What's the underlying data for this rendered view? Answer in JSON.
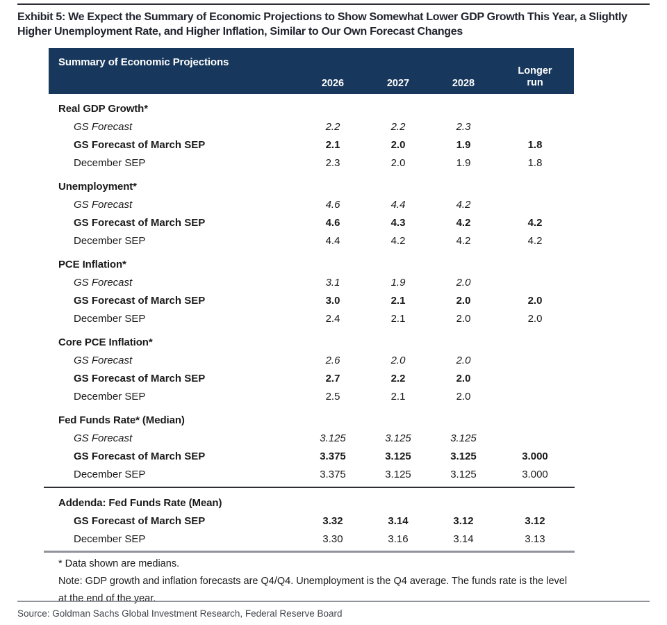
{
  "exhibit": {
    "title": "Exhibit 5: We Expect the Summary of Economic Projections to Show Somewhat Lower GDP Growth This Year, a Slightly Higher Unemployment Rate, and Higher Inflation, Similar to Our Own Forecast Changes",
    "source": "Source: Goldman Sachs Global Investment Research, Federal Reserve Board"
  },
  "table": {
    "title": "Summary of Economic Projections",
    "columns": [
      "2026",
      "2027",
      "2028",
      "Longer run"
    ],
    "sections": [
      {
        "label": "Real GDP Growth*",
        "rows": [
          {
            "label": "GS Forecast",
            "style": "italic",
            "values": [
              "2.2",
              "2.2",
              "2.3",
              ""
            ]
          },
          {
            "label": "GS Forecast of March SEP",
            "style": "bold",
            "values": [
              "2.1",
              "2.0",
              "1.9",
              "1.8"
            ]
          },
          {
            "label": "December SEP",
            "style": "regular",
            "values": [
              "2.3",
              "2.0",
              "1.9",
              "1.8"
            ]
          }
        ]
      },
      {
        "label": "Unemployment*",
        "rows": [
          {
            "label": "GS Forecast",
            "style": "italic",
            "values": [
              "4.6",
              "4.4",
              "4.2",
              ""
            ]
          },
          {
            "label": "GS Forecast of March SEP",
            "style": "bold",
            "values": [
              "4.6",
              "4.3",
              "4.2",
              "4.2"
            ]
          },
          {
            "label": "December SEP",
            "style": "regular",
            "values": [
              "4.4",
              "4.2",
              "4.2",
              "4.2"
            ]
          }
        ]
      },
      {
        "label": "PCE Inflation*",
        "rows": [
          {
            "label": "GS Forecast",
            "style": "italic",
            "values": [
              "3.1",
              "1.9",
              "2.0",
              ""
            ]
          },
          {
            "label": "GS Forecast of March SEP",
            "style": "bold",
            "values": [
              "3.0",
              "2.1",
              "2.0",
              "2.0"
            ]
          },
          {
            "label": "December SEP",
            "style": "regular",
            "values": [
              "2.4",
              "2.1",
              "2.0",
              "2.0"
            ]
          }
        ]
      },
      {
        "label": "Core PCE Inflation*",
        "rows": [
          {
            "label": "GS Forecast",
            "style": "italic",
            "values": [
              "2.6",
              "2.0",
              "2.0",
              ""
            ]
          },
          {
            "label": "GS Forecast of March SEP",
            "style": "bold",
            "values": [
              "2.7",
              "2.2",
              "2.0",
              ""
            ]
          },
          {
            "label": "December SEP",
            "style": "regular",
            "values": [
              "2.5",
              "2.1",
              "2.0",
              ""
            ]
          }
        ]
      },
      {
        "label": "Fed Funds Rate* (Median)",
        "rows": [
          {
            "label": "GS Forecast",
            "style": "italic",
            "values": [
              "3.125",
              "3.125",
              "3.125",
              ""
            ]
          },
          {
            "label": "GS Forecast of March SEP",
            "style": "bold",
            "values": [
              "3.375",
              "3.125",
              "3.125",
              "3.000"
            ]
          },
          {
            "label": "December SEP",
            "style": "regular",
            "values": [
              "3.375",
              "3.125",
              "3.125",
              "3.000"
            ]
          }
        ]
      },
      {
        "label": "Addenda: Fed Funds Rate (Mean)",
        "divider_above": true,
        "rows": [
          {
            "label": "GS Forecast of March SEP",
            "style": "bold",
            "values": [
              "3.32",
              "3.14",
              "3.12",
              "3.12"
            ]
          },
          {
            "label": "December SEP",
            "style": "regular",
            "values": [
              "3.30",
              "3.16",
              "3.14",
              "3.13"
            ]
          }
        ]
      }
    ],
    "footnotes": [
      "* Data shown are medians.",
      "Note: GDP growth and inflation forecasts are Q4/Q4.  Unemployment is the Q4 average.  The funds rate is the level at the end of the year."
    ]
  },
  "colors": {
    "header_bg": "#17375c",
    "header_text": "#ffffff",
    "title_text": "#20242e",
    "body_text": "#1a1a1a",
    "divider_dark": "#2e2f33",
    "divider_gray": "#90939a",
    "source_text": "#42464e"
  }
}
